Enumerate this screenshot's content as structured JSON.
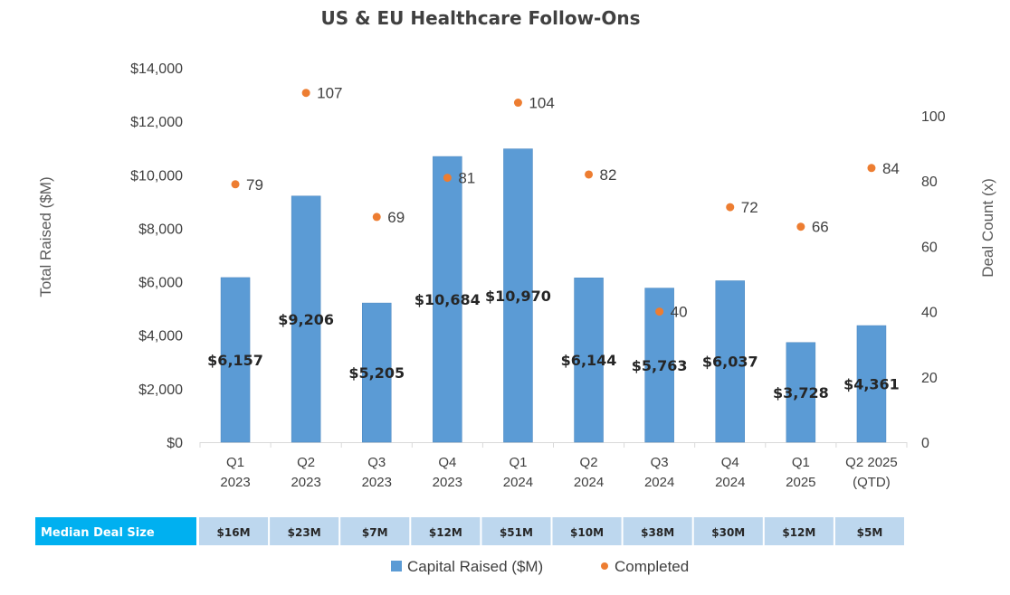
{
  "chart_data": {
    "type": "bar",
    "title": "US & EU Healthcare Follow-Ons",
    "ylabel": "Total Raised ($M)",
    "y2label": "Deal Count (x)",
    "ylim": [
      0,
      14000
    ],
    "y2lim": [
      0,
      100
    ],
    "yticks": [
      "$0",
      "$2,000",
      "$4,000",
      "$6,000",
      "$8,000",
      "$10,000",
      "$12,000",
      "$14,000"
    ],
    "y2ticks": [
      "0",
      "20",
      "40",
      "60",
      "80",
      "100"
    ],
    "categories": [
      [
        "Q1",
        "2023"
      ],
      [
        "Q2",
        "2023"
      ],
      [
        "Q3",
        "2023"
      ],
      [
        "Q4",
        "2023"
      ],
      [
        "Q1",
        "2024"
      ],
      [
        "Q2",
        "2024"
      ],
      [
        "Q3",
        "2024"
      ],
      [
        "Q4",
        "2024"
      ],
      [
        "Q1",
        "2025"
      ],
      [
        "Q2 2025",
        "(QTD)"
      ]
    ],
    "series": [
      {
        "name": "Capital Raised ($M)",
        "type": "bar",
        "axis": "left",
        "color": "#5B9BD5",
        "values": [
          6157,
          9206,
          5205,
          10684,
          10970,
          6144,
          5763,
          6037,
          3728,
          4361
        ],
        "labels": [
          "$6,157",
          "$9,206",
          "$5,205",
          "$10,684",
          "$10,970",
          "$6,144",
          "$5,763",
          "$6,037",
          "$3,728",
          "$4,361"
        ]
      },
      {
        "name": "Completed",
        "type": "scatter",
        "axis": "right",
        "color": "#ED7D31",
        "values": [
          79,
          107,
          69,
          81,
          104,
          82,
          40,
          72,
          66,
          84
        ],
        "labels": [
          "79",
          "107",
          "69",
          "81",
          "104",
          "82",
          "40",
          "72",
          "66",
          "84"
        ]
      }
    ],
    "median_deal_size": {
      "label": "Median Deal Size",
      "values": [
        "$16M",
        "$23M",
        "$7M",
        "$12M",
        "$51M",
        "$10M",
        "$38M",
        "$30M",
        "$12M",
        "$5M"
      ]
    },
    "legend_position": "bottom",
    "grid": false
  },
  "colors": {
    "bar": "#5B9BD5",
    "dot": "#ED7D31",
    "header_fill": "#00B0F0",
    "cell_fill": "#BDD7EE"
  }
}
